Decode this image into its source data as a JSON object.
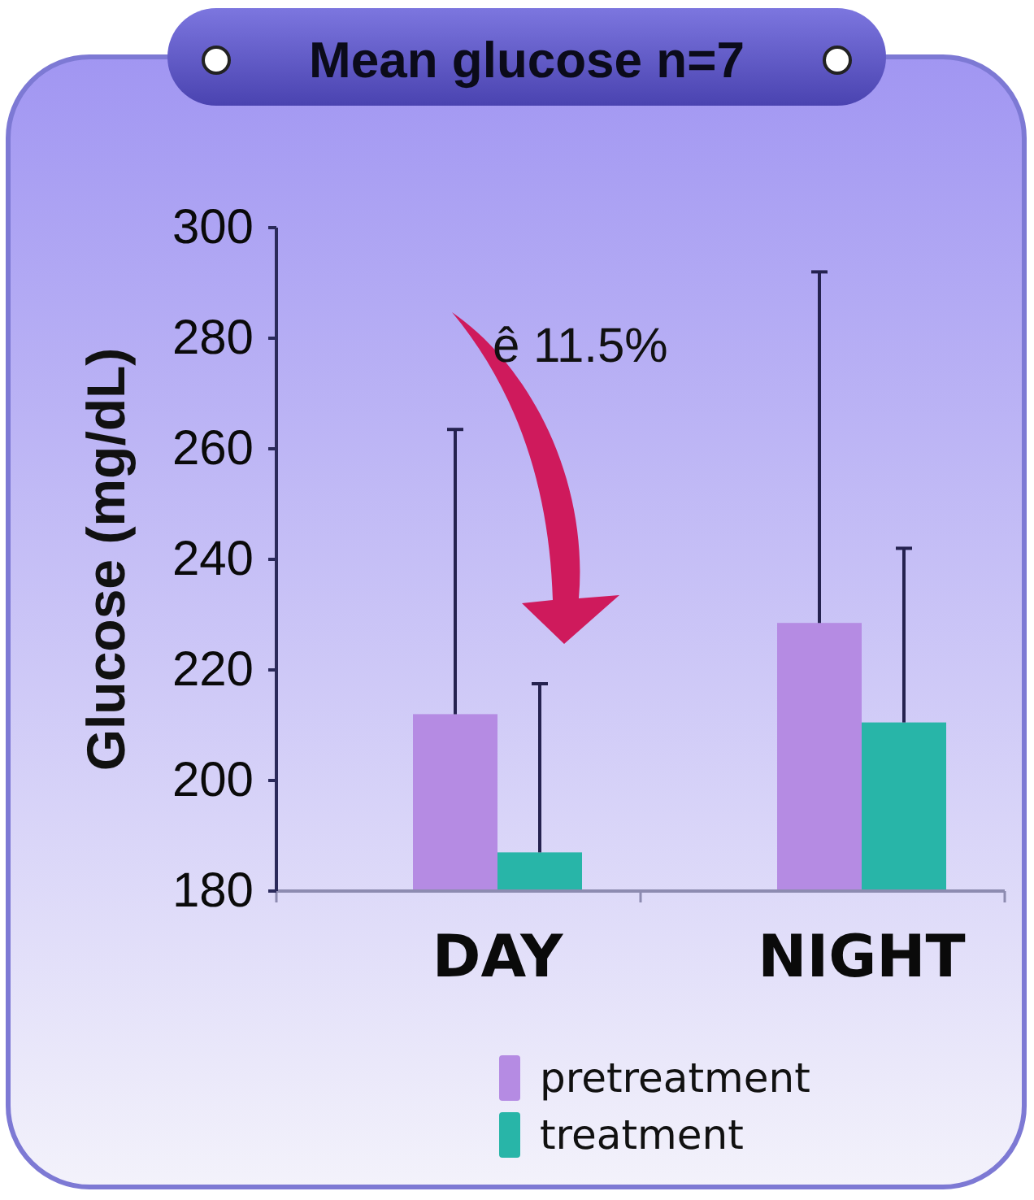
{
  "chart_data": {
    "type": "bar",
    "title": "Mean glucose n=7",
    "ylabel": "Glucose (mg/dL)",
    "categories": [
      "DAY",
      "NIGHT"
    ],
    "series": [
      {
        "name": "pretreatment",
        "color": "#b58be3",
        "values": [
          212,
          228.5
        ],
        "errors": [
          [
            212,
            263.5
          ],
          [
            228.5,
            292
          ]
        ]
      },
      {
        "name": "treatment",
        "color": "#28b5a8",
        "values": [
          187,
          210.5
        ],
        "errors": [
          [
            187,
            217.5
          ],
          [
            210.5,
            242
          ]
        ]
      }
    ],
    "ylim": [
      180,
      300
    ],
    "yticks": [
      180,
      200,
      220,
      240,
      260,
      280,
      300
    ],
    "legend": "bottom",
    "annotations": [
      "ê 11.5%"
    ]
  }
}
